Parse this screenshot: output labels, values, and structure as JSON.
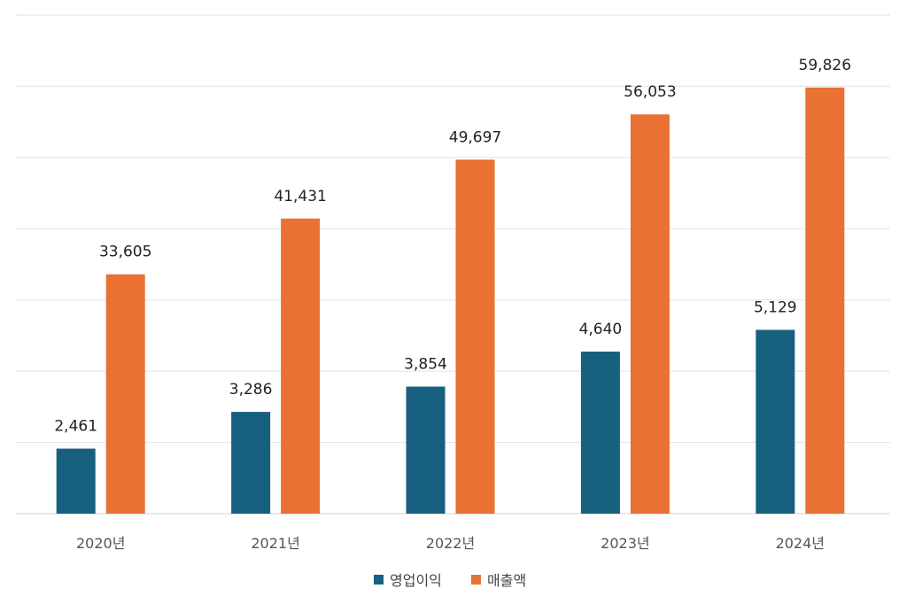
{
  "chart_data": {
    "type": "bar",
    "title": "",
    "categories": [
      "2020년",
      "2021년",
      "2022년",
      "2023년",
      "2024년"
    ],
    "series": [
      {
        "name": "영업이익",
        "values": [
          2461,
          3286,
          3854,
          4640,
          5129
        ],
        "labels": [
          "2,461",
          "3,286",
          "3,854",
          "4,640",
          "5,129"
        ],
        "color": "#17607f",
        "axis": "secondary"
      },
      {
        "name": "매출액",
        "values": [
          33605,
          41431,
          49697,
          56053,
          59826
        ],
        "labels": [
          "33,605",
          "41,431",
          "49,697",
          "56,053",
          "59,826"
        ],
        "color": "#e97132",
        "axis": "primary"
      }
    ],
    "ylim": [
      0,
      70000
    ],
    "y2lim": [
      1000,
      12200
    ],
    "grid": true,
    "legend": "bottom-center",
    "xlabel": "",
    "ylabel": ""
  }
}
